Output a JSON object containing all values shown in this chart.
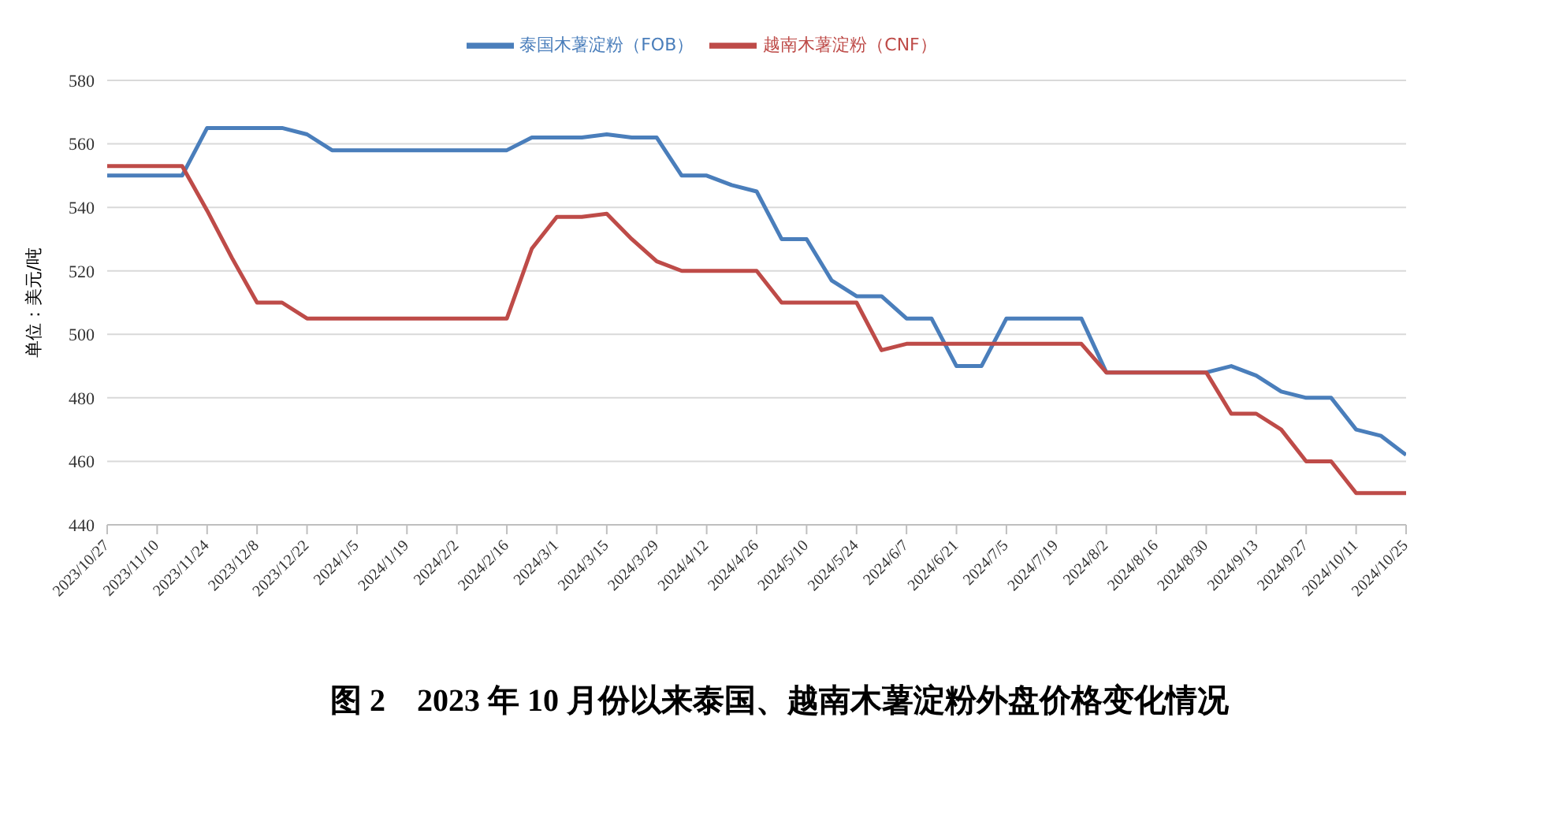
{
  "chart_data": {
    "type": "line",
    "title": "图 2　2023 年 10 月份以来泰国、越南木薯淀粉外盘价格变化情况",
    "ylabel": "单位：美元/吨",
    "categories": [
      "2023/10/27",
      null,
      "2023/11/10",
      null,
      "2023/11/24",
      null,
      "2023/12/8",
      null,
      "2023/12/22",
      null,
      "2024/1/5",
      null,
      "2024/1/19",
      null,
      "2024/2/2",
      null,
      "2024/2/16",
      null,
      "2024/3/1",
      null,
      "2024/3/15",
      null,
      "2024/3/29",
      null,
      "2024/4/12",
      null,
      "2024/4/26",
      null,
      "2024/5/10",
      null,
      "2024/5/24",
      null,
      "2024/6/7",
      null,
      "2024/6/21",
      null,
      "2024/7/5",
      null,
      "2024/7/19",
      null,
      "2024/8/2",
      null,
      "2024/8/16",
      null,
      "2024/8/30",
      null,
      "2024/9/13",
      null,
      "2024/9/27",
      null,
      "2024/10/11",
      null,
      "2024/10/25"
    ],
    "series": [
      {
        "name": "泰国木薯淀粉（FOB）",
        "color": "#4a7ebb",
        "values": [
          550,
          550,
          550,
          550,
          565,
          565,
          565,
          565,
          563,
          558,
          558,
          558,
          558,
          558,
          558,
          558,
          558,
          562,
          562,
          562,
          563,
          562,
          562,
          550,
          550,
          547,
          545,
          530,
          530,
          517,
          512,
          512,
          505,
          505,
          490,
          490,
          505,
          505,
          505,
          505,
          488,
          488,
          488,
          488,
          488,
          490,
          487,
          482,
          480,
          480,
          470,
          468,
          462
        ]
      },
      {
        "name": "越南木薯淀粉（CNF）",
        "color": "#be4b48",
        "values": [
          553,
          553,
          553,
          553,
          539,
          524,
          510,
          510,
          505,
          505,
          505,
          505,
          505,
          505,
          505,
          505,
          505,
          527,
          537,
          537,
          538,
          530,
          523,
          520,
          520,
          520,
          520,
          510,
          510,
          510,
          510,
          495,
          497,
          497,
          497,
          497,
          497,
          497,
          497,
          497,
          488,
          488,
          488,
          488,
          488,
          475,
          475,
          470,
          460,
          460,
          450,
          450,
          450
        ]
      }
    ],
    "ylim": [
      440,
      580
    ],
    "yticks": [
      440,
      460,
      480,
      500,
      520,
      540,
      560,
      580
    ],
    "grid": "y",
    "legend": "top",
    "marker": "none",
    "line_style": "solid"
  }
}
